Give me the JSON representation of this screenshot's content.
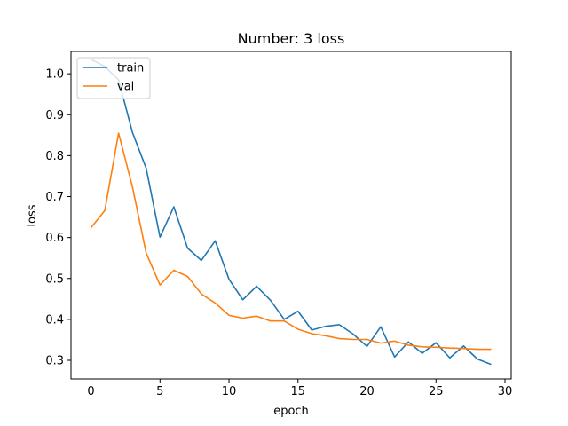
{
  "chart_data": {
    "type": "line",
    "title": "Number: 3 loss",
    "xlabel": "epoch",
    "ylabel": "loss",
    "xlim": [
      -1.45,
      30.45
    ],
    "ylim": [
      0.2545,
      1.0545
    ],
    "xticks": [
      0,
      5,
      10,
      15,
      20,
      25,
      30
    ],
    "yticks": [
      0.3,
      0.4,
      0.5,
      0.6,
      0.7,
      0.8,
      0.9,
      1.0
    ],
    "grid": false,
    "legend_position": "top-left",
    "x": [
      0,
      1,
      2,
      3,
      4,
      5,
      6,
      7,
      8,
      9,
      10,
      11,
      12,
      13,
      14,
      15,
      16,
      17,
      18,
      19,
      20,
      21,
      22,
      23,
      24,
      25,
      26,
      27,
      28,
      29
    ],
    "series": [
      {
        "name": "train",
        "color": "#1f77b4",
        "values": [
          1.035,
          1.018,
          0.985,
          0.857,
          0.769,
          0.601,
          0.675,
          0.574,
          0.544,
          0.592,
          0.498,
          0.448,
          0.481,
          0.447,
          0.4,
          0.42,
          0.374,
          0.383,
          0.387,
          0.364,
          0.334,
          0.382,
          0.308,
          0.345,
          0.317,
          0.343,
          0.306,
          0.335,
          0.303,
          0.29
        ]
      },
      {
        "name": "val",
        "color": "#ff7f0e",
        "values": [
          0.624,
          0.666,
          0.855,
          0.724,
          0.562,
          0.484,
          0.52,
          0.505,
          0.462,
          0.44,
          0.41,
          0.403,
          0.408,
          0.396,
          0.396,
          0.376,
          0.365,
          0.36,
          0.353,
          0.351,
          0.351,
          0.342,
          0.347,
          0.337,
          0.333,
          0.332,
          0.33,
          0.329,
          0.327,
          0.327
        ]
      }
    ]
  }
}
